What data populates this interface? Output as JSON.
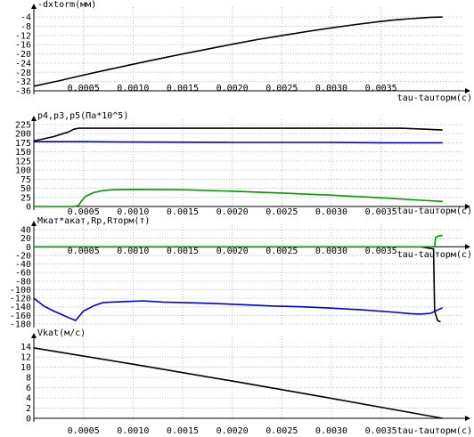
{
  "chart_data": [
    {
      "type": "line",
      "ylabel": "-dxtorm(мм)",
      "xlabel": "tau-tauторм(c)",
      "x_ticks": [
        "0.0005",
        "0.0010",
        "0.0015",
        "0.0020",
        "0.0025",
        "0.0030",
        "0.0035"
      ],
      "y_ticks": [
        "-4",
        "-8",
        "-12",
        "-16",
        "-20",
        "-24",
        "-28",
        "-32",
        "-36"
      ],
      "xlim": [
        0,
        0.00415
      ],
      "ylim": [
        -36,
        -2
      ],
      "series": [
        {
          "color": "#000000",
          "x": [
            0,
            0.00025,
            0.0005,
            0.00075,
            0.001,
            0.00125,
            0.0015,
            0.00175,
            0.002,
            0.00225,
            0.0025,
            0.00275,
            0.003,
            0.00325,
            0.0035,
            0.0036,
            0.0037,
            0.0038,
            0.0039,
            0.004,
            0.00412
          ],
          "y": [
            -34,
            -31.7,
            -29.2,
            -26.8,
            -24.5,
            -22.2,
            -20.0,
            -17.9,
            -15.8,
            -13.8,
            -12.0,
            -10.3,
            -8.7,
            -7.2,
            -5.9,
            -5.4,
            -5.0,
            -4.7,
            -4.4,
            -4.1,
            -4.0
          ]
        }
      ]
    },
    {
      "type": "line",
      "ylabel": "p4,p3,p5(Па*10^5)",
      "xlabel": "tau-tauторм(c)",
      "x_ticks": [
        "0.0005",
        "0.0010",
        "0.0015",
        "0.0020",
        "0.0025",
        "0.0030",
        "0.0035"
      ],
      "y_ticks": [
        "225",
        "200",
        "175",
        "150",
        "125",
        "100",
        "75",
        "50",
        "25",
        "0"
      ],
      "xlim": [
        0,
        0.00415
      ],
      "ylim": [
        0,
        225
      ],
      "series": [
        {
          "color": "#000000",
          "x": [
            0,
            0.0002,
            0.00035,
            0.0004,
            0.00045,
            0.0035,
            0.0037,
            0.0039,
            0.00412
          ],
          "y": [
            180,
            192,
            205,
            212,
            215,
            215,
            215,
            213,
            210
          ]
        },
        {
          "color": "#0000cc",
          "x": [
            0,
            0.0005,
            0.001,
            0.002,
            0.003,
            0.0035,
            0.00412
          ],
          "y": [
            178,
            178,
            177,
            176,
            176,
            175,
            175
          ]
        },
        {
          "color": "#009900",
          "x": [
            0,
            0.0004,
            0.00045,
            0.00048,
            0.00052,
            0.0006,
            0.0007,
            0.0008,
            0.001,
            0.0015,
            0.002,
            0.0025,
            0.003,
            0.0035,
            0.0039,
            0.00412
          ],
          "y": [
            0,
            0,
            3,
            15,
            28,
            38,
            44,
            46,
            47,
            46,
            42,
            37,
            31,
            24,
            17,
            14
          ]
        }
      ]
    },
    {
      "type": "line",
      "ylabel": "Mкат*акат,Rp,Rторм(т)",
      "xlabel": "tau-tauторм(c)",
      "x_ticks": [
        "0.0005",
        "0.0010",
        "0.0015",
        "0.0020",
        "0.0025",
        "0.0030",
        "0.0035"
      ],
      "y_ticks": [
        "40",
        "20",
        "0",
        "-20",
        "-40",
        "-60",
        "-80",
        "-100",
        "-120",
        "-140",
        "-160",
        "-180"
      ],
      "xlim": [
        0,
        0.00415
      ],
      "ylim": [
        -180,
        40
      ],
      "series": [
        {
          "color": "#000000",
          "x": [
            0,
            0.002,
            0.0039,
            0.00403,
            0.00404,
            0.00407,
            0.0041
          ],
          "y": [
            0,
            0,
            0,
            -5,
            -150,
            -172,
            -175
          ]
        },
        {
          "color": "#009900",
          "x": [
            0,
            0.003,
            0.00404,
            0.00405,
            0.00408,
            0.00412
          ],
          "y": [
            0,
            0,
            0,
            22,
            25,
            27
          ]
        },
        {
          "color": "#0000cc",
          "x": [
            0,
            0.0001,
            0.0002,
            0.0003,
            0.00035,
            0.00042,
            0.0005,
            0.0006,
            0.0007,
            0.0009,
            0.0011,
            0.0013,
            0.0015,
            0.0018,
            0.0021,
            0.0024,
            0.0027,
            0.003,
            0.0033,
            0.0036,
            0.0038,
            0.0039,
            0.004,
            0.00412
          ],
          "y": [
            -120,
            -138,
            -150,
            -160,
            -165,
            -172,
            -150,
            -138,
            -130,
            -128,
            -126,
            -129,
            -130,
            -132,
            -135,
            -138,
            -140,
            -143,
            -147,
            -152,
            -156,
            -157,
            -155,
            -142
          ]
        }
      ]
    },
    {
      "type": "line",
      "ylabel": "Vkat(м/с)",
      "xlabel": "tau-tauторм(c)",
      "x_ticks": [
        "0.0005",
        "0.0010",
        "0.0015",
        "0.0020",
        "0.0025",
        "0.0030",
        "0.0035"
      ],
      "y_ticks": [
        "14",
        "12",
        "10",
        "8",
        "6",
        "4",
        "2",
        "0"
      ],
      "xlim": [
        0,
        0.00415
      ],
      "ylim": [
        0,
        15
      ],
      "series": [
        {
          "color": "#000000",
          "x": [
            0,
            0.001,
            0.002,
            0.003,
            0.00412
          ],
          "y": [
            13.8,
            10.6,
            7.3,
            3.9,
            0
          ]
        }
      ]
    }
  ]
}
